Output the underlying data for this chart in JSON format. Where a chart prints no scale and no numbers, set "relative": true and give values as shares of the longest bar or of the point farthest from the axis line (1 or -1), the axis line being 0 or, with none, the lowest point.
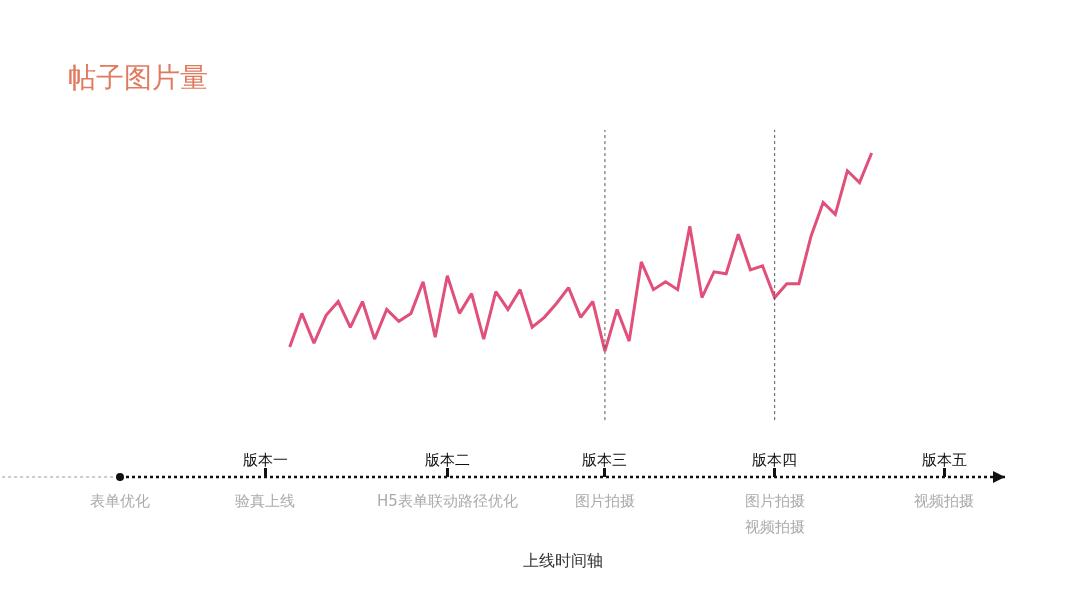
{
  "chart_data": {
    "type": "line",
    "title": "帖子图片量",
    "relative": true,
    "categories": [
      null,
      null,
      null,
      null,
      null,
      null,
      null,
      null,
      null,
      null,
      null,
      null,
      "版本一",
      null,
      null,
      null,
      null,
      null,
      null,
      null,
      null,
      null,
      null,
      null,
      null,
      null,
      null,
      "版本二",
      null,
      null,
      null,
      null,
      null,
      null,
      null,
      null,
      null,
      null,
      null,
      null,
      "版本三",
      null,
      null,
      null,
      null,
      null,
      null,
      null,
      null,
      null,
      null,
      null,
      null,
      null,
      "版本四",
      null,
      null,
      null,
      null,
      null,
      null,
      null,
      null,
      null,
      null,
      null,
      null,
      null,
      "版本五",
      null,
      null,
      null,
      null,
      null
    ],
    "series": [
      {
        "color": "#e0507a",
        "values": [
          null,
          null,
          null,
          null,
          null,
          null,
          null,
          null,
          null,
          null,
          null,
          null,
          null,
          null,
          0.02,
          0.19,
          0.04,
          0.18,
          0.25,
          0.12,
          0.25,
          0.06,
          0.21,
          0.15,
          0.19,
          0.35,
          0.07,
          0.38,
          0.19,
          0.29,
          0.06,
          0.3,
          0.21,
          0.31,
          0.12,
          0.17,
          0.24,
          0.32,
          0.17,
          0.25,
          0,
          0.21,
          0.05,
          0.45,
          0.31,
          0.35,
          0.31,
          0.63,
          0.27,
          0.4,
          0.39,
          0.59,
          0.41,
          0.43,
          0.27,
          0.34,
          0.34,
          0.58,
          0.75,
          0.69,
          0.91,
          0.85,
          1,
          null,
          null,
          null,
          null,
          null,
          null,
          null,
          null,
          null,
          null,
          null
        ]
      }
    ],
    "ref_lines": [
      {
        "axis": "x",
        "value": "版本三",
        "color": "#555555",
        "line_style": "dotted"
      },
      {
        "axis": "x",
        "value": "版本四",
        "color": "#555555",
        "line_style": "dotted"
      }
    ],
    "annotations": [
      "表单优化",
      "验真上线",
      "H5表单联动路径优化",
      "图片拍摄",
      "图片拍摄",
      "视频拍摄",
      "视频拍摄",
      "上线时间轴"
    ],
    "marker": "none",
    "line_style": "solid"
  }
}
